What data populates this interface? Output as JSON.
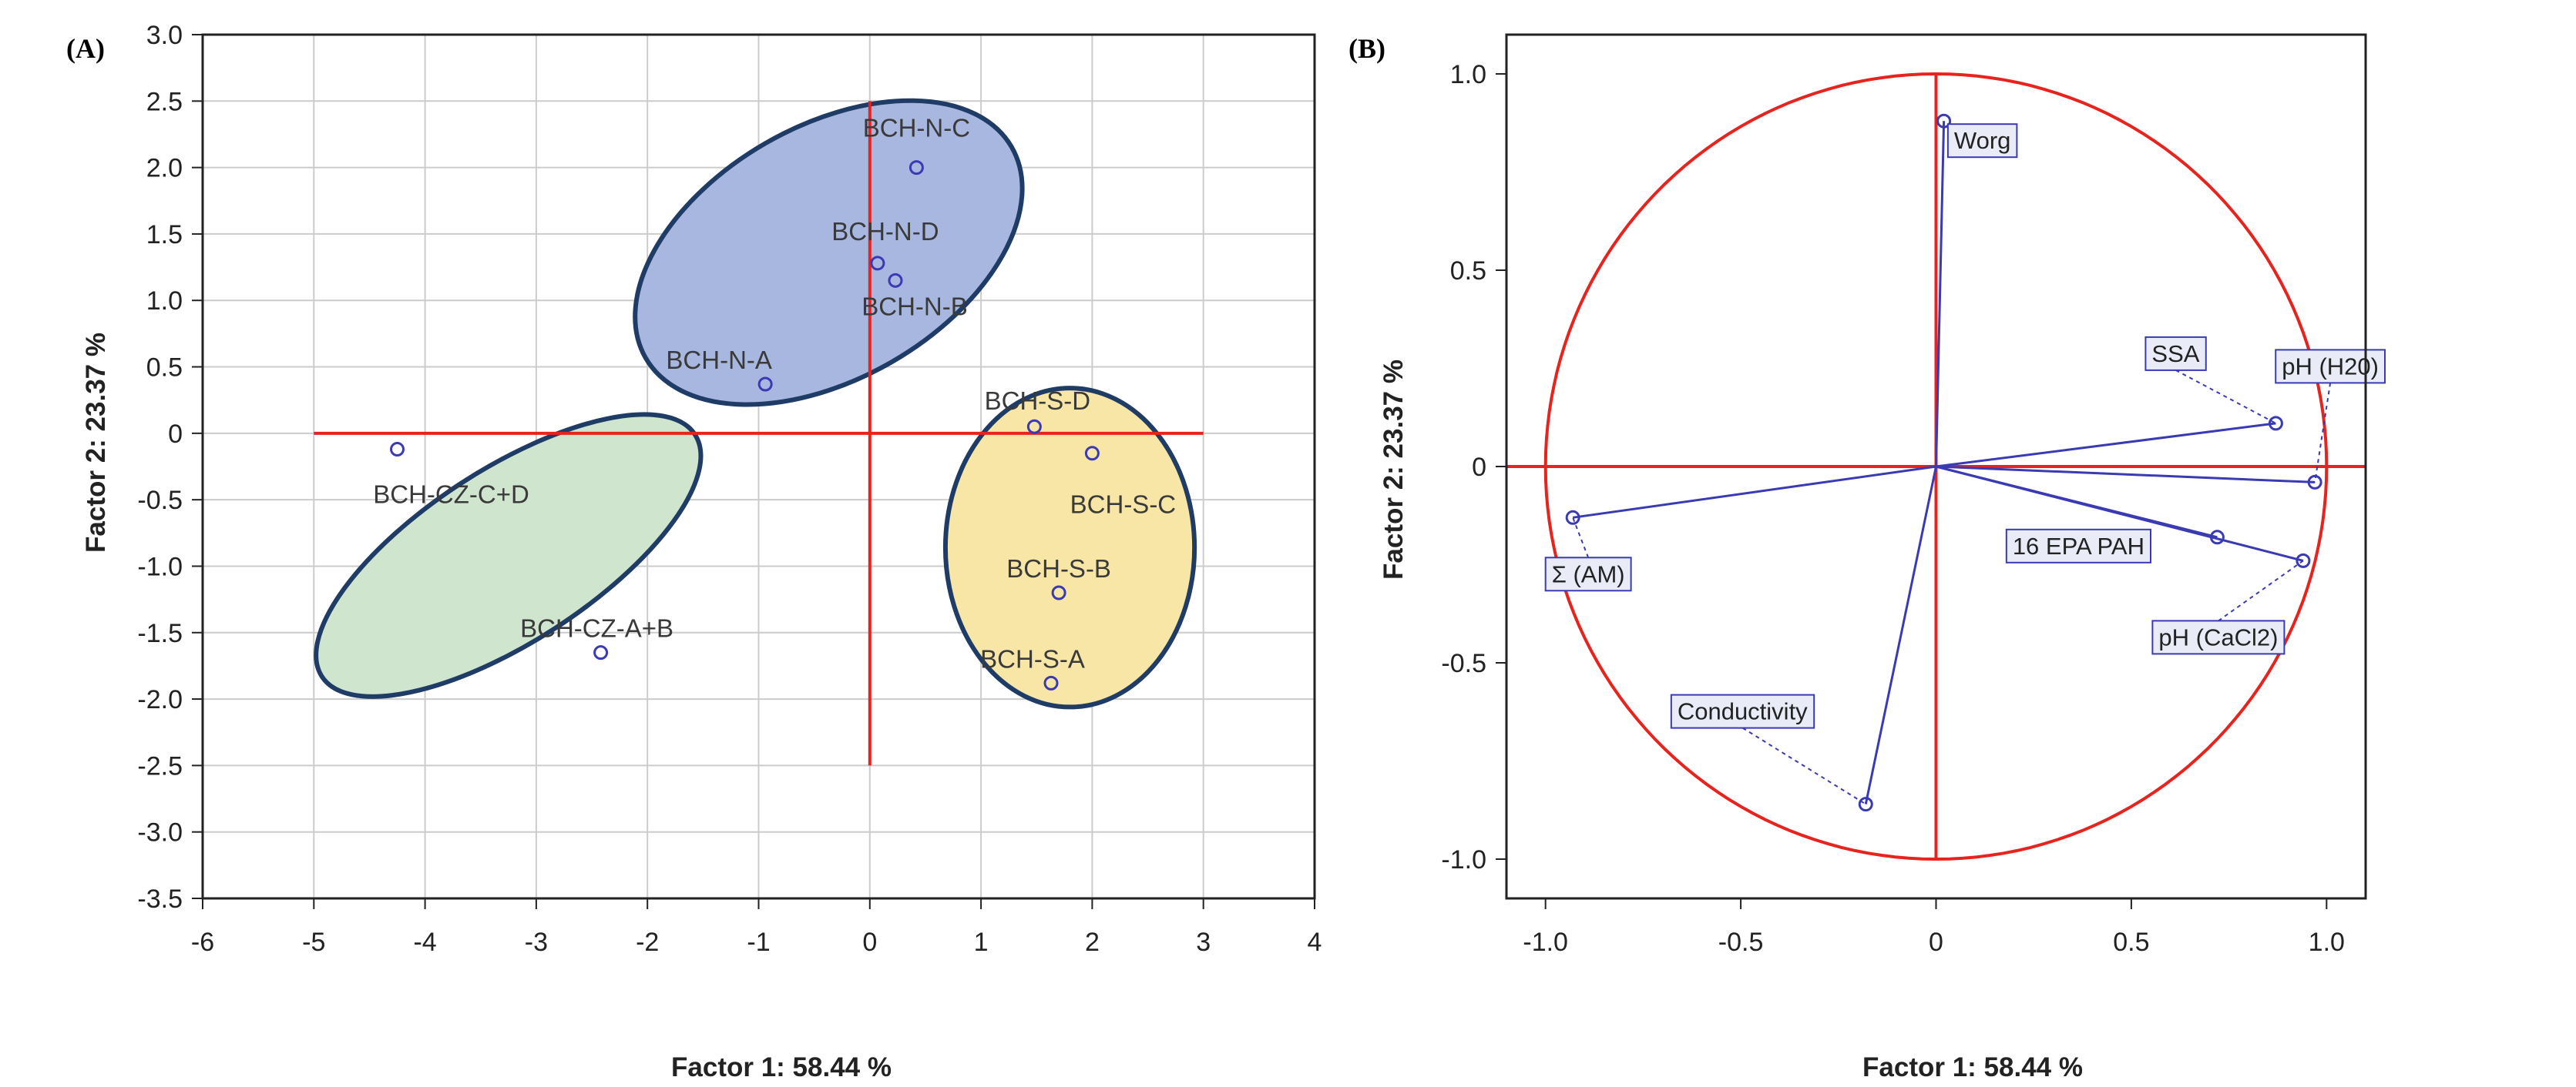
{
  "colors": {
    "axis_red": "#e8231e",
    "point_blue": "#3a3ab4",
    "label_box_border": "#3a3ab4",
    "label_box_fill": "#e9ecf7",
    "ellipse_blue_fill": "#a8b7df",
    "ellipse_yellow_fill": "#f7e6a6",
    "ellipse_green_fill": "#cfe5cd",
    "ellipse_stroke": "#1f3c66",
    "grid": "#cccccc",
    "frame": "#222222"
  },
  "chart_data": [
    {
      "panel_label": "(A)",
      "type": "scatter",
      "title": "",
      "xlabel": "Factor 1: 58.44 %",
      "ylabel": "Factor 2: 23.37 %",
      "xlim": [
        -6,
        4
      ],
      "ylim": [
        -3.5,
        3.0
      ],
      "x_ticks": [
        -6,
        -5,
        -4,
        -3,
        -2,
        -1,
        0,
        1,
        2,
        3,
        4
      ],
      "y_ticks": [
        3.0,
        2.5,
        2.0,
        1.5,
        1.0,
        0.5,
        0,
        -0.5,
        -1.0,
        -1.5,
        -2.0,
        -2.5,
        -3.0,
        -3.5
      ],
      "x_tick_labels": [
        "-6",
        "-5",
        "-4",
        "-3",
        "-2",
        "-1",
        "0",
        "1",
        "2",
        "3",
        "4"
      ],
      "y_tick_labels": [
        "3.0",
        "2.5",
        "2.0",
        "1.5",
        "1.0",
        "0.5",
        "0",
        "-0.5",
        "-1.0",
        "-1.5",
        "-2.0",
        "-2.5",
        "-3.0",
        "-3.5"
      ],
      "grid": true,
      "reference_lines": {
        "horizontal": {
          "y": 0,
          "x_from": -5,
          "x_to": 3
        },
        "vertical": {
          "x": 0,
          "y_from": -2.5,
          "y_to": 2.5
        }
      },
      "groups": [
        {
          "name": "BCH-N",
          "color": "blue",
          "cx": -0.37,
          "cy": 1.36,
          "rx": 1.9,
          "ry": 0.95,
          "rotation_deg": 30
        },
        {
          "name": "BCH-S",
          "color": "yellow",
          "cx": 1.8,
          "cy": -0.86,
          "rx": 1.12,
          "ry": 1.2,
          "rotation_deg": 0
        },
        {
          "name": "BCH-CZ",
          "color": "green",
          "cx": -3.25,
          "cy": -0.92,
          "rx": 2.0,
          "ry": 0.65,
          "rotation_deg": 33
        }
      ],
      "points": [
        {
          "label": "BCH-N-C",
          "x": 0.42,
          "y": 2.0
        },
        {
          "label": "BCH-N-D",
          "x": 0.07,
          "y": 1.28
        },
        {
          "label": "BCH-N-B",
          "x": 0.23,
          "y": 1.15
        },
        {
          "label": "BCH-N-A",
          "x": -0.94,
          "y": 0.37
        },
        {
          "label": "BCH-S-D",
          "x": 1.48,
          "y": 0.05
        },
        {
          "label": "BCH-S-C",
          "x": 2.0,
          "y": -0.15
        },
        {
          "label": "BCH-S-B",
          "x": 1.7,
          "y": -1.2
        },
        {
          "label": "BCH-S-A",
          "x": 1.63,
          "y": -1.88
        },
        {
          "label": "BCH-CZ-C+D",
          "x": -4.25,
          "y": -0.12
        },
        {
          "label": "BCH-CZ-A+B",
          "x": -2.42,
          "y": -1.65
        }
      ]
    },
    {
      "panel_label": "(B)",
      "type": "scatter",
      "title": "",
      "xlabel": "Factor 1: 58.44 %",
      "ylabel": "Factor 2: 23.37 %",
      "xlim": [
        -1.1,
        1.1
      ],
      "ylim": [
        -1.1,
        1.1
      ],
      "x_ticks": [
        -1.0,
        -0.5,
        0,
        0.5,
        1.0
      ],
      "y_ticks": [
        1.0,
        0.5,
        0,
        -0.5,
        -1.0
      ],
      "x_tick_labels": [
        "-1.0",
        "-0.5",
        "0",
        "0.5",
        "1.0"
      ],
      "y_tick_labels": [
        "1.0",
        "0.5",
        "0",
        "-0.5",
        "-1.0"
      ],
      "grid": false,
      "unit_circle": true,
      "reference_lines": {
        "horizontal": {
          "y": 0,
          "x_from": -1.1,
          "x_to": 1.1
        },
        "vertical": {
          "x": 0,
          "y_from": -1.0,
          "y_to": 1.0
        }
      },
      "vectors": [
        {
          "label": "Worg",
          "x": 0.02,
          "y": 0.88
        },
        {
          "label": "SSA",
          "x": 0.87,
          "y": 0.11
        },
        {
          "label": "pH (H20)",
          "x": 0.97,
          "y": -0.04
        },
        {
          "label": "16 EPA PAH",
          "x": 0.72,
          "y": -0.18
        },
        {
          "label": "pH (CaCl2)",
          "x": 0.94,
          "y": -0.24
        },
        {
          "label": "Σ (AM)",
          "x": -0.93,
          "y": -0.13
        },
        {
          "label": "Conductivity",
          "x": -0.18,
          "y": -0.86
        }
      ]
    }
  ]
}
